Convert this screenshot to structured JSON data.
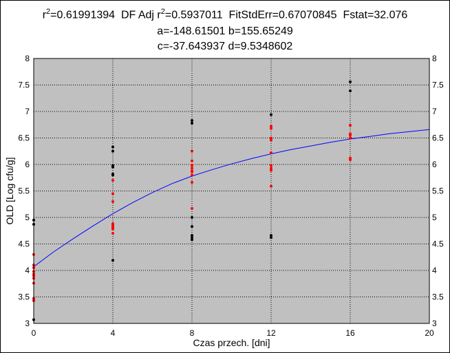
{
  "title": {
    "r2_label": "r",
    "r2_value": "=0.61991394",
    "dfadj_label": "DF Adj r",
    "dfadj_value": "=0.5937011",
    "fitstderr": "FitStdErr=0.67070845",
    "fstat": "Fstat=32.076",
    "superscript": "2",
    "line2": "a=-148.61501 b=155.65249",
    "line3": "c=-37.643937 d=9.5348602"
  },
  "colors": {
    "plot_bg": "#c0c0c0",
    "grid": "#000000",
    "curve": "#0000ff",
    "points_black": "#000000",
    "points_red": "#ff0000"
  },
  "chart_data": {
    "type": "scatter",
    "xlabel": "Czas przech. [dni]",
    "ylabel": "OLD [Log cfu/g]",
    "xlim": [
      0,
      20
    ],
    "ylim": [
      3,
      8
    ],
    "xticks": [
      "0",
      "4",
      "8",
      "12",
      "16",
      "20"
    ],
    "yticks": [
      "3",
      "3.5",
      "4",
      "4.5",
      "5",
      "5.5",
      "6",
      "6.5",
      "7",
      "7.5",
      "8"
    ],
    "grid": true,
    "series": [
      {
        "color": "black",
        "points": [
          [
            0,
            4.95
          ],
          [
            0,
            4.87
          ],
          [
            0,
            3.07
          ],
          [
            4,
            6.33
          ],
          [
            4,
            6.25
          ],
          [
            4,
            5.98
          ],
          [
            4,
            5.95
          ],
          [
            4,
            5.82
          ],
          [
            4,
            5.8
          ],
          [
            4,
            4.19
          ],
          [
            8,
            6.83
          ],
          [
            8,
            6.78
          ],
          [
            8,
            5.0
          ],
          [
            8,
            4.83
          ],
          [
            8,
            4.66
          ],
          [
            8,
            4.62
          ],
          [
            8,
            4.58
          ],
          [
            12,
            6.94
          ],
          [
            12,
            4.66
          ],
          [
            12,
            4.62
          ],
          [
            16,
            7.56
          ],
          [
            16,
            7.39
          ]
        ]
      },
      {
        "color": "red",
        "points": [
          [
            0,
            4.3
          ],
          [
            0,
            4.1
          ],
          [
            0,
            4.05
          ],
          [
            0,
            3.98
          ],
          [
            0,
            3.93
          ],
          [
            0,
            3.9
          ],
          [
            0,
            3.85
          ],
          [
            0,
            3.76
          ],
          [
            0,
            3.47
          ],
          [
            0,
            3.43
          ],
          [
            4,
            5.7
          ],
          [
            4,
            5.45
          ],
          [
            4,
            5.3
          ],
          [
            4,
            4.88
          ],
          [
            4,
            4.85
          ],
          [
            4,
            4.82
          ],
          [
            4,
            4.8
          ],
          [
            4,
            4.78
          ],
          [
            4,
            4.7
          ],
          [
            8,
            6.25
          ],
          [
            8,
            6.07
          ],
          [
            8,
            5.98
          ],
          [
            8,
            5.93
          ],
          [
            8,
            5.88
          ],
          [
            8,
            5.86
          ],
          [
            8,
            5.8
          ],
          [
            8,
            5.66
          ],
          [
            8,
            5.17
          ],
          [
            12,
            6.72
          ],
          [
            12,
            6.68
          ],
          [
            12,
            6.5
          ],
          [
            12,
            6.46
          ],
          [
            12,
            6.22
          ],
          [
            12,
            5.98
          ],
          [
            12,
            5.93
          ],
          [
            12,
            5.89
          ],
          [
            12,
            5.59
          ],
          [
            16,
            6.74
          ],
          [
            16,
            6.58
          ],
          [
            16,
            6.55
          ],
          [
            16,
            6.5
          ],
          [
            16,
            6.12
          ],
          [
            16,
            6.09
          ]
        ]
      }
    ],
    "curve": {
      "x": [
        0,
        1,
        2,
        3,
        4,
        5,
        6,
        7,
        8,
        9,
        10,
        11,
        12,
        13,
        14,
        15,
        16,
        17,
        18,
        19,
        20
      ],
      "y": [
        4.07,
        4.35,
        4.6,
        4.84,
        5.07,
        5.28,
        5.47,
        5.64,
        5.78,
        5.9,
        6.01,
        6.11,
        6.2,
        6.28,
        6.35,
        6.42,
        6.48,
        6.53,
        6.58,
        6.62,
        6.66
      ]
    }
  }
}
